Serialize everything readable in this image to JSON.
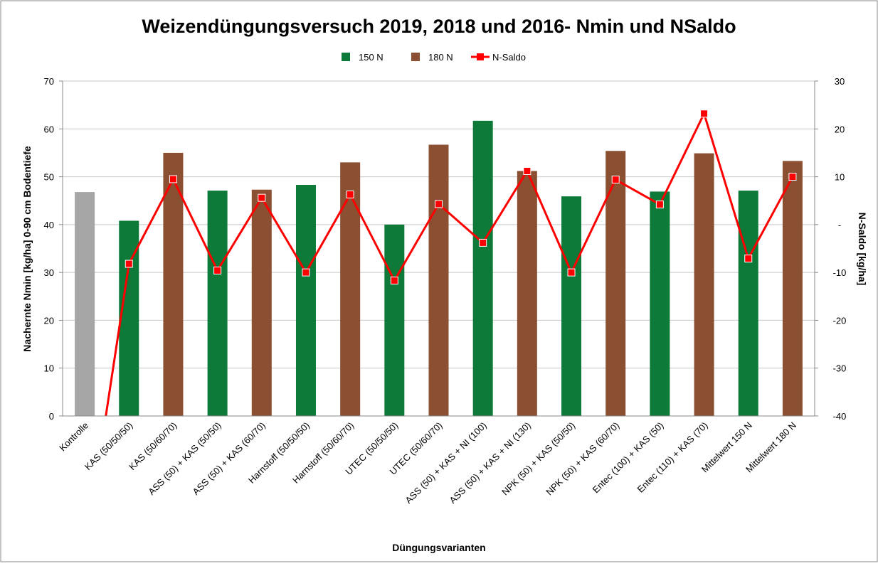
{
  "chart_data": {
    "type": "bar",
    "title": "Weizendüngungsversuch 2019, 2018 und 2016- Nmin und NSaldo",
    "x_label": "Düngungsvarianten",
    "y_label": "Nacherntе Nmin [kg/ha] 0-90 cm Bodentiefe",
    "y2_label": "N-Saldo [kg/ha]",
    "categories": [
      "Kontrolle",
      "KAS (50/50/50)",
      "KAS (50/60/70)",
      "ASS (50) + KAS (50/50)",
      "ASS (50) + KAS (60/70)",
      "Harnstoff (50/50/50)",
      "Harnstoff (50/60/70)",
      "UTEC (50/50/50)",
      "UTEC (50/60/70)",
      "ASS (50) + KAS + NI (100)",
      "ASS (50) + KAS + NI (130)",
      "NPK (50) + KAS (50/50)",
      "NPK (50) + KAS (60/70)",
      "Entec (100) + KAS (50)",
      "Entec (110) + KAS (70)",
      "Mittelwert 150 N",
      "Mittelwert 180 N"
    ],
    "series": [
      {
        "name": "150 N",
        "color": "#0e7a3a",
        "colors": [
          "#a6a6a6",
          "#0e7a3a",
          "#0e7a3a",
          "#0e7a3a",
          "#0e7a3a",
          "#0e7a3a",
          "#0e7a3a",
          "#0e7a3a",
          "#0e7a3a",
          "#0e7a3a",
          "#0e7a3a",
          "#0e7a3a",
          "#0e7a3a",
          "#0e7a3a",
          "#0e7a3a",
          "#0e7a3a",
          "#0e7a3a"
        ],
        "values": [
          46.8,
          40.8,
          null,
          47.1,
          null,
          48.3,
          null,
          40.0,
          null,
          61.7,
          null,
          45.9,
          null,
          46.9,
          null,
          47.1,
          null
        ]
      },
      {
        "name": "180 N",
        "color": "#8b4f32",
        "values": [
          null,
          null,
          55.0,
          null,
          47.3,
          null,
          53.0,
          null,
          56.7,
          null,
          51.2,
          null,
          55.4,
          null,
          54.9,
          null,
          53.3
        ]
      },
      {
        "name": "N-Saldo",
        "type": "line",
        "axis": "y2",
        "color": "#ff0000",
        "values": [
          -69,
          -8.2,
          9.5,
          -9.6,
          5.6,
          -10,
          6.3,
          -11.7,
          4.3,
          -3.8,
          11.2,
          -10,
          9.4,
          4.2,
          23.2,
          -7.1,
          10.0
        ]
      }
    ],
    "ylim": [
      0,
      70
    ],
    "yticks": [
      0,
      10,
      20,
      30,
      40,
      50,
      60,
      70
    ],
    "y2lim": [
      -40,
      30
    ],
    "y2ticks": [
      -40,
      -30,
      -20,
      -10,
      {
        "value": 0,
        "label": "-"
      },
      10,
      20,
      30
    ],
    "grid": true,
    "legend": "top"
  }
}
